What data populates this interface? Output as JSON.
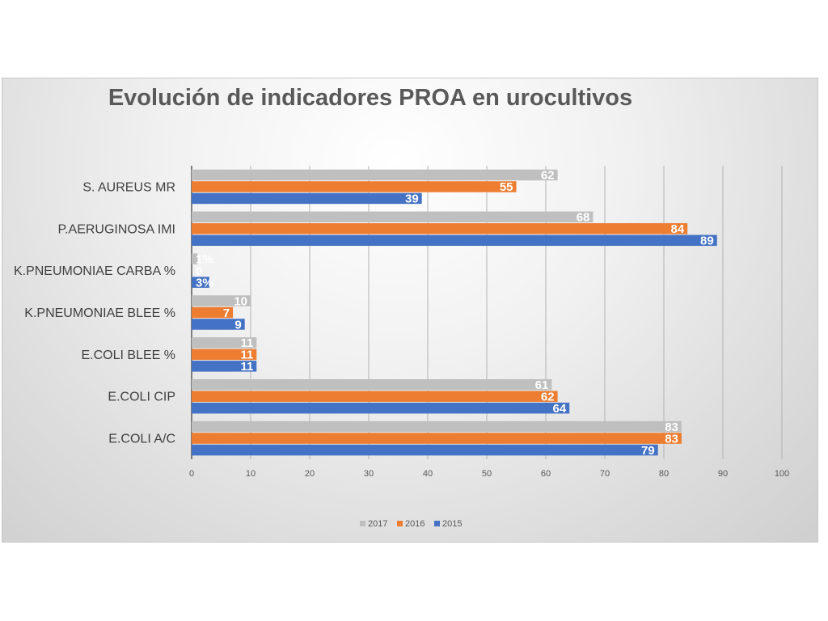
{
  "chart_data": {
    "type": "bar",
    "orientation": "horizontal",
    "title": "Evolución de indicadores PROA en urocultivos",
    "xlabel": "",
    "ylabel": "",
    "xlim": [
      0,
      100
    ],
    "x_ticks": [
      "0",
      "10",
      "20",
      "30",
      "40",
      "50",
      "60",
      "70",
      "80",
      "90",
      "100"
    ],
    "grid": true,
    "legend_position": "bottom",
    "categories": [
      "S. AUREUS  MR",
      "P.AERUGINOSA IMI",
      "K.PNEUMONIAE CARBA %",
      "K.PNEUMONIAE BLEE %",
      "E.COLI BLEE %",
      "E.COLI CIP",
      "E.COLI A/C"
    ],
    "series": [
      {
        "name": "2017",
        "color": "#bfbfbf",
        "values": [
          62,
          68,
          1,
          10,
          11,
          61,
          83
        ],
        "labels": [
          "62",
          "68",
          "1%",
          "10",
          "11",
          "61",
          "83"
        ]
      },
      {
        "name": "2016",
        "color": "#ed7d31",
        "values": [
          55,
          84,
          0,
          7,
          11,
          62,
          83
        ],
        "labels": [
          "55",
          "84",
          "0",
          "7",
          "11",
          "62",
          "83"
        ]
      },
      {
        "name": "2015",
        "color": "#4472c4",
        "values": [
          39,
          89,
          3,
          9,
          11,
          64,
          79
        ],
        "labels": [
          "39",
          "89",
          "3%",
          "9",
          "11",
          "64",
          "79"
        ]
      }
    ]
  }
}
